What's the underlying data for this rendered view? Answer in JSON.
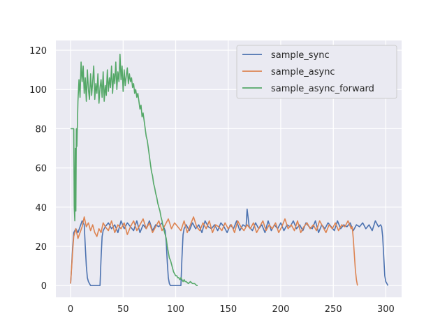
{
  "chart_data": {
    "type": "line",
    "title": "",
    "xlabel": "",
    "ylabel": "",
    "xlim": [
      -14,
      315
    ],
    "ylim": [
      -6,
      125
    ],
    "x_ticks": [
      0,
      50,
      100,
      150,
      200,
      250,
      300
    ],
    "y_ticks": [
      0,
      20,
      40,
      60,
      80,
      100,
      120
    ],
    "grid": true,
    "legend_position": "top-right",
    "series": [
      {
        "name": "sample_sync",
        "color": "#4c72b0",
        "x": [
          0,
          2,
          3,
          5,
          7,
          9,
          11,
          13,
          14,
          15,
          16,
          17,
          18,
          19,
          20,
          22,
          25,
          28,
          29,
          30,
          31,
          33,
          36,
          39,
          42,
          45,
          48,
          51,
          54,
          57,
          60,
          63,
          66,
          69,
          72,
          75,
          78,
          81,
          84,
          87,
          90,
          91,
          92,
          93,
          94,
          95,
          96,
          98,
          100,
          103,
          105,
          106,
          107,
          108,
          110,
          113,
          116,
          119,
          122,
          125,
          128,
          131,
          134,
          137,
          140,
          143,
          146,
          149,
          152,
          155,
          158,
          161,
          164,
          167,
          168,
          170,
          173,
          176,
          179,
          182,
          185,
          188,
          191,
          194,
          197,
          200,
          203,
          206,
          209,
          212,
          215,
          218,
          221,
          224,
          227,
          230,
          233,
          236,
          239,
          242,
          245,
          248,
          251,
          254,
          257,
          260,
          263,
          266,
          269,
          272,
          275,
          278,
          281,
          284,
          287,
          290,
          293,
          295,
          296,
          297,
          298,
          299,
          300,
          301,
          302
        ],
        "y": [
          1,
          20,
          27,
          29,
          27,
          30,
          33,
          31,
          20,
          10,
          4,
          2,
          1,
          0,
          0,
          0,
          0,
          0,
          14,
          25,
          28,
          30,
          32,
          29,
          31,
          27,
          33,
          29,
          32,
          30,
          28,
          33,
          27,
          31,
          29,
          33,
          28,
          31,
          30,
          32,
          28,
          22,
          12,
          4,
          1,
          0,
          0,
          0,
          0,
          0,
          0,
          14,
          26,
          29,
          31,
          28,
          32,
          29,
          31,
          27,
          33,
          30,
          29,
          31,
          28,
          32,
          30,
          27,
          31,
          29,
          33,
          28,
          31,
          30,
          39,
          30,
          28,
          32,
          29,
          31,
          27,
          33,
          28,
          31,
          29,
          32,
          28,
          31,
          30,
          33,
          29,
          31,
          28,
          32,
          30,
          29,
          33,
          27,
          31,
          29,
          32,
          30,
          28,
          33,
          29,
          31,
          30,
          32,
          28,
          31,
          30,
          32,
          29,
          31,
          28,
          33,
          30,
          31,
          30,
          25,
          15,
          5,
          2,
          1,
          0
        ]
      },
      {
        "name": "sample_async",
        "color": "#dd8452",
        "x": [
          0,
          2,
          3,
          5,
          7,
          9,
          11,
          13,
          15,
          17,
          19,
          21,
          23,
          25,
          27,
          29,
          31,
          33,
          36,
          39,
          42,
          45,
          48,
          51,
          54,
          57,
          60,
          63,
          66,
          69,
          72,
          75,
          78,
          81,
          84,
          87,
          90,
          93,
          96,
          99,
          102,
          105,
          108,
          111,
          114,
          117,
          120,
          123,
          126,
          129,
          132,
          135,
          138,
          141,
          144,
          147,
          150,
          153,
          156,
          159,
          162,
          165,
          168,
          171,
          174,
          177,
          180,
          183,
          186,
          189,
          192,
          195,
          198,
          201,
          204,
          207,
          210,
          213,
          216,
          219,
          222,
          225,
          228,
          231,
          234,
          237,
          240,
          243,
          246,
          249,
          252,
          255,
          258,
          261,
          264,
          267,
          268,
          269,
          270,
          271,
          272,
          273
        ],
        "y": [
          1,
          18,
          25,
          29,
          24,
          27,
          30,
          35,
          30,
          32,
          28,
          31,
          27,
          25,
          29,
          27,
          32,
          30,
          28,
          33,
          27,
          31,
          29,
          32,
          26,
          30,
          33,
          28,
          31,
          34,
          29,
          32,
          27,
          30,
          33,
          28,
          31,
          34,
          29,
          32,
          30,
          28,
          33,
          27,
          31,
          35,
          30,
          28,
          32,
          29,
          33,
          27,
          31,
          30,
          28,
          32,
          29,
          31,
          27,
          33,
          30,
          28,
          31,
          29,
          32,
          27,
          30,
          33,
          28,
          31,
          29,
          32,
          27,
          30,
          34,
          29,
          31,
          28,
          33,
          27,
          30,
          32,
          29,
          31,
          28,
          33,
          30,
          27,
          31,
          29,
          32,
          28,
          31,
          30,
          33,
          29,
          30,
          24,
          16,
          8,
          3,
          0
        ]
      },
      {
        "name": "sample_async_forward",
        "color": "#55a868",
        "x": [
          0,
          2,
          3,
          3.5,
          4,
          4.5,
          5,
          5.5,
          6,
          7,
          8,
          9,
          10,
          11,
          12,
          13,
          14,
          15,
          16,
          17,
          18,
          19,
          20,
          21,
          22,
          23,
          24,
          25,
          26,
          27,
          28,
          29,
          30,
          31,
          32,
          33,
          34,
          35,
          36,
          37,
          38,
          39,
          40,
          41,
          42,
          43,
          44,
          45,
          46,
          47,
          48,
          49,
          50,
          51,
          52,
          53,
          54,
          55,
          56,
          57,
          58,
          59,
          60,
          61,
          62,
          63,
          64,
          65,
          66,
          67,
          68,
          69,
          70,
          71,
          72,
          73,
          74,
          75,
          76,
          77,
          78,
          79,
          80,
          81,
          82,
          83,
          84,
          85,
          86,
          87,
          88,
          89,
          90,
          91,
          92,
          93,
          94,
          95,
          96,
          97,
          98,
          99,
          100,
          101,
          102,
          103,
          104,
          105,
          106,
          107,
          108,
          109,
          110,
          112,
          114,
          116,
          118,
          120,
          121
        ],
        "y": [
          80,
          80,
          80,
          40,
          33,
          70,
          38,
          80,
          71,
          94,
          105,
          96,
          114,
          104,
          112,
          98,
          106,
          94,
          110,
          100,
          95,
          108,
          97,
          104,
          112,
          95,
          103,
          98,
          108,
          93,
          101,
          105,
          96,
          109,
          94,
          102,
          97,
          110,
          99,
          106,
          101,
          112,
          98,
          108,
          103,
          114,
          100,
          109,
          104,
          118,
          105,
          112,
          99,
          110,
          102,
          107,
          111,
          103,
          108,
          104,
          106,
          101,
          103,
          98,
          100,
          96,
          98,
          94,
          90,
          92,
          86,
          88,
          84,
          80,
          76,
          74,
          70,
          66,
          62,
          58,
          56,
          52,
          50,
          47,
          45,
          42,
          40,
          38,
          35,
          33,
          30,
          28,
          26,
          24,
          20,
          17,
          14,
          13,
          11,
          9,
          7,
          6,
          5,
          5,
          4,
          4,
          3,
          4,
          3,
          2,
          3,
          2,
          2,
          1,
          2,
          1,
          1,
          0,
          0
        ]
      }
    ]
  }
}
